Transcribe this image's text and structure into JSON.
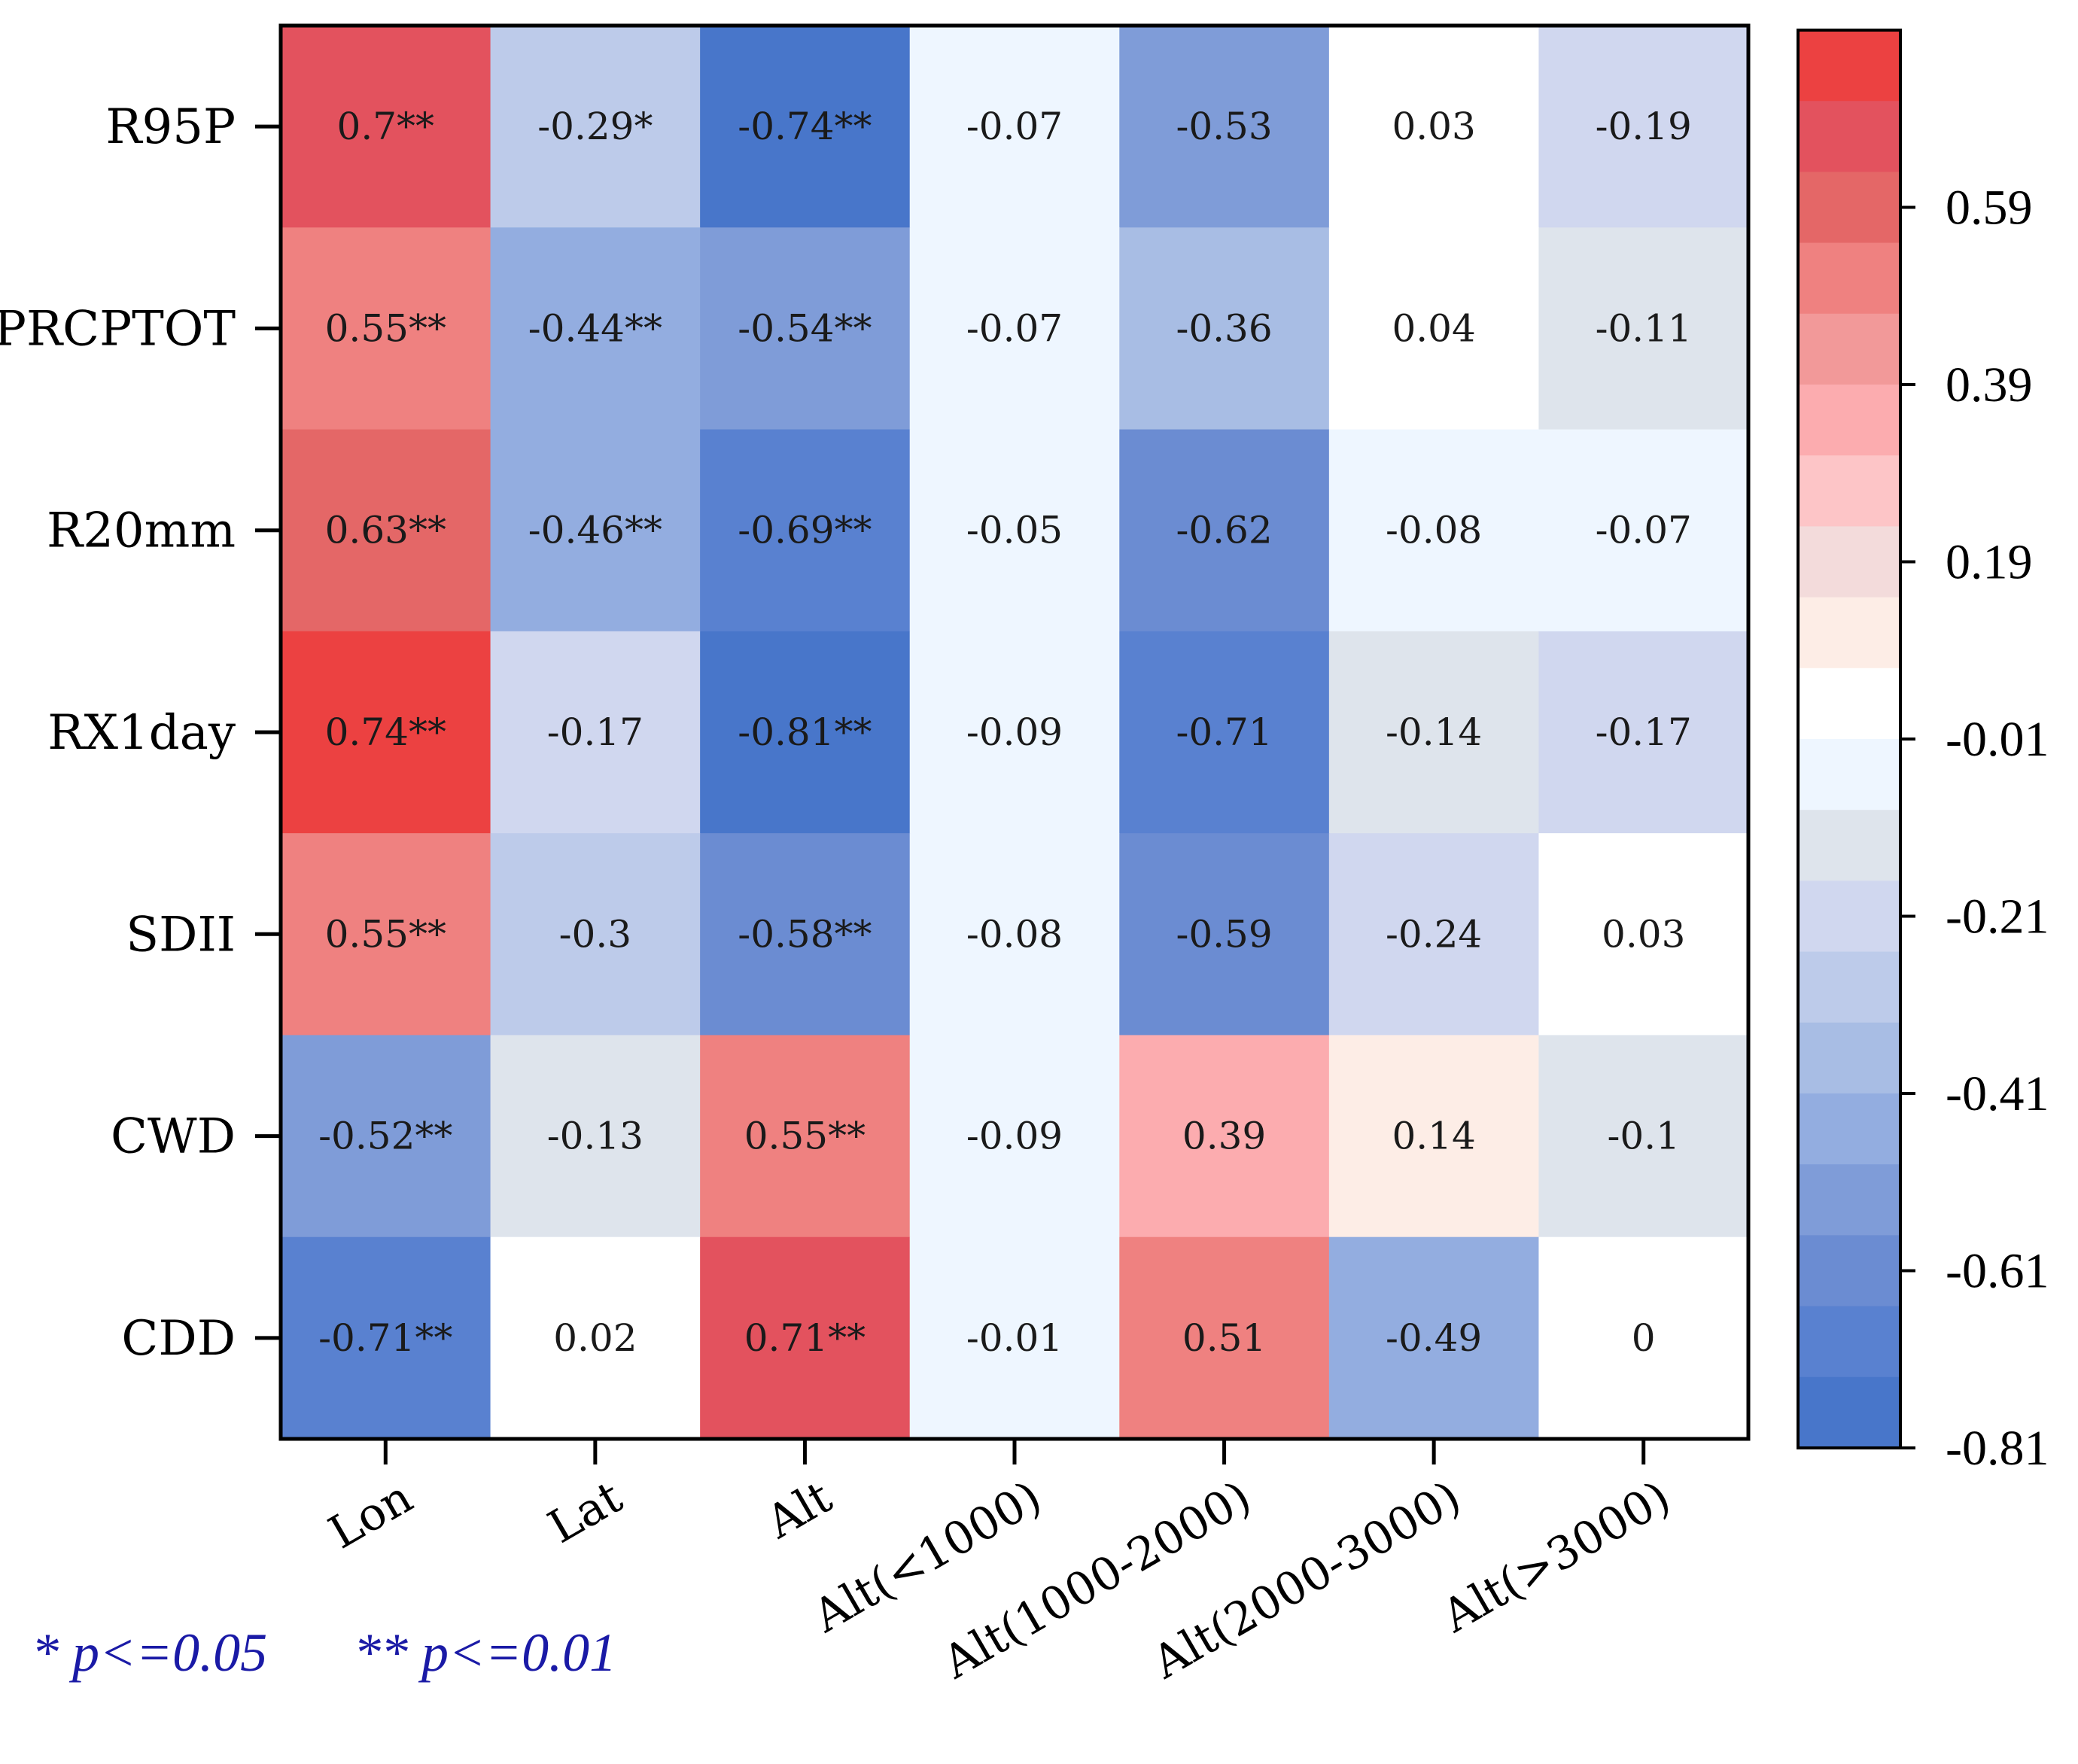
{
  "chart_data": {
    "type": "heatmap",
    "rows": [
      "R95P",
      "PRCPTOT",
      "R20mm",
      "RX1day",
      "SDII",
      "CWD",
      "CDD"
    ],
    "columns": [
      "Lon",
      "Lat",
      "Alt",
      "Alt(<1000)",
      "Alt(1000-2000)",
      "Alt(2000-3000)",
      "Alt(>3000)"
    ],
    "values": [
      [
        0.7,
        -0.29,
        -0.74,
        -0.07,
        -0.53,
        0.03,
        -0.19
      ],
      [
        0.55,
        -0.44,
        -0.54,
        -0.07,
        -0.36,
        0.04,
        -0.11
      ],
      [
        0.63,
        -0.46,
        -0.69,
        -0.05,
        -0.62,
        -0.08,
        -0.07
      ],
      [
        0.74,
        -0.17,
        -0.81,
        -0.09,
        -0.71,
        -0.14,
        -0.17
      ],
      [
        0.55,
        -0.3,
        -0.58,
        -0.08,
        -0.59,
        -0.24,
        0.03
      ],
      [
        -0.52,
        -0.13,
        0.55,
        -0.09,
        0.39,
        0.14,
        -0.1
      ],
      [
        -0.71,
        0.02,
        0.71,
        -0.01,
        0.51,
        -0.49,
        0.0
      ]
    ],
    "labels": [
      [
        "0.7**",
        "-0.29*",
        "-0.74**",
        "-0.07",
        "-0.53",
        "0.03",
        "-0.19"
      ],
      [
        "0.55**",
        "-0.44**",
        "-0.54**",
        "-0.07",
        "-0.36",
        "0.04",
        "-0.11"
      ],
      [
        "0.63**",
        "-0.46**",
        "-0.69**",
        "-0.05",
        "-0.62",
        "-0.08",
        "-0.07"
      ],
      [
        "0.74**",
        "-0.17",
        "-0.81**",
        "-0.09",
        "-0.71",
        "-0.14",
        "-0.17"
      ],
      [
        "0.55**",
        "-0.3",
        "-0.58**",
        "-0.08",
        "-0.59",
        "-0.24",
        "0.03"
      ],
      [
        "-0.52**",
        "-0.13",
        "0.55**",
        "-0.09",
        "0.39",
        "0.14",
        "-0.1"
      ],
      [
        "-0.71**",
        "0.02",
        "0.71**",
        "-0.01",
        "0.51",
        "-0.49",
        "0"
      ]
    ],
    "colorbar": {
      "min": -0.81,
      "max": 0.79,
      "tick_labels": [
        "0.59",
        "0.39",
        "0.19",
        "-0.01",
        "-0.21",
        "-0.41",
        "-0.61",
        "-0.81"
      ],
      "tick_values": [
        0.59,
        0.39,
        0.19,
        -0.01,
        -0.21,
        -0.41,
        -0.61,
        -0.81
      ],
      "colors_top_to_bottom": [
        "#ec4141",
        "#e3525e",
        "#e46767",
        "#ef8180",
        "#f29999",
        "#fcacaf",
        "#fdc5c7",
        "#f3dbdb",
        "#fdede6",
        "#ffffff",
        "#eef6ff",
        "#dee4ec",
        "#d0d7ef",
        "#bdcbea",
        "#a8bde4",
        "#93ade0",
        "#7f9cd8",
        "#6b8cd2",
        "#5981d0",
        "#4876ca"
      ]
    }
  },
  "legend_note": {
    "single": "* p<=0.05",
    "double": "** p<=0.01"
  }
}
